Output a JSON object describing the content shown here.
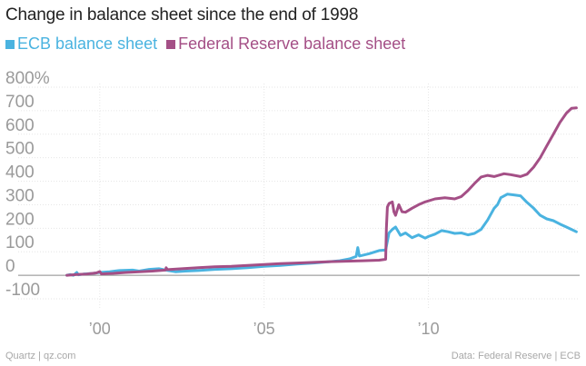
{
  "chart_data": {
    "type": "line",
    "title": "Change in balance sheet since the end of 1998",
    "xlabel": "",
    "ylabel": "",
    "ylim": [
      -100,
      800
    ],
    "xlim": [
      1998.9,
      2014.6
    ],
    "y_ticks": [
      {
        "value": 800,
        "label": "800%"
      },
      {
        "value": 700,
        "label": "700"
      },
      {
        "value": 600,
        "label": "600"
      },
      {
        "value": 500,
        "label": "500"
      },
      {
        "value": 400,
        "label": "400"
      },
      {
        "value": 300,
        "label": "300"
      },
      {
        "value": 200,
        "label": "200"
      },
      {
        "value": 100,
        "label": "100"
      },
      {
        "value": 0,
        "label": "0"
      },
      {
        "value": -100,
        "label": "-100"
      }
    ],
    "x_ticks": [
      {
        "value": 2000,
        "label": "’00"
      },
      {
        "value": 2005,
        "label": "’05"
      },
      {
        "value": 2010,
        "label": "’10"
      }
    ],
    "grid": true,
    "legend_position": "top-left",
    "series": [
      {
        "name": "ECB balance sheet",
        "color": "#4ab3e0",
        "points": [
          [
            1999.0,
            0
          ],
          [
            1999.1,
            3
          ],
          [
            1999.2,
            0
          ],
          [
            1999.3,
            12
          ],
          [
            1999.35,
            2
          ],
          [
            1999.5,
            5
          ],
          [
            1999.8,
            8
          ],
          [
            2000.0,
            12
          ],
          [
            2000.3,
            15
          ],
          [
            2000.6,
            20
          ],
          [
            2001.0,
            22
          ],
          [
            2001.2,
            18
          ],
          [
            2001.5,
            25
          ],
          [
            2001.8,
            28
          ],
          [
            2002.0,
            22
          ],
          [
            2002.3,
            15
          ],
          [
            2002.6,
            18
          ],
          [
            2003.0,
            20
          ],
          [
            2003.5,
            25
          ],
          [
            2004.0,
            28
          ],
          [
            2004.5,
            32
          ],
          [
            2005.0,
            38
          ],
          [
            2005.5,
            42
          ],
          [
            2006.0,
            48
          ],
          [
            2006.5,
            52
          ],
          [
            2007.0,
            58
          ],
          [
            2007.3,
            62
          ],
          [
            2007.6,
            70
          ],
          [
            2007.8,
            80
          ],
          [
            2007.85,
            118
          ],
          [
            2007.9,
            82
          ],
          [
            2008.2,
            92
          ],
          [
            2008.5,
            105
          ],
          [
            2008.7,
            108
          ],
          [
            2008.8,
            180
          ],
          [
            2008.9,
            195
          ],
          [
            2009.0,
            205
          ],
          [
            2009.15,
            170
          ],
          [
            2009.3,
            180
          ],
          [
            2009.5,
            160
          ],
          [
            2009.7,
            172
          ],
          [
            2009.9,
            158
          ],
          [
            2010.0,
            165
          ],
          [
            2010.2,
            175
          ],
          [
            2010.4,
            190
          ],
          [
            2010.6,
            185
          ],
          [
            2010.8,
            178
          ],
          [
            2011.0,
            180
          ],
          [
            2011.2,
            172
          ],
          [
            2011.4,
            178
          ],
          [
            2011.6,
            195
          ],
          [
            2011.8,
            235
          ],
          [
            2011.9,
            260
          ],
          [
            2012.0,
            285
          ],
          [
            2012.1,
            300
          ],
          [
            2012.2,
            330
          ],
          [
            2012.4,
            345
          ],
          [
            2012.6,
            342
          ],
          [
            2012.8,
            338
          ],
          [
            2013.0,
            310
          ],
          [
            2013.2,
            285
          ],
          [
            2013.4,
            255
          ],
          [
            2013.6,
            240
          ],
          [
            2013.8,
            232
          ],
          [
            2014.0,
            218
          ],
          [
            2014.2,
            205
          ],
          [
            2014.35,
            195
          ],
          [
            2014.5,
            185
          ]
        ]
      },
      {
        "name": "Federal Reserve balance sheet",
        "color": "#a44f86",
        "points": [
          [
            1999.0,
            0
          ],
          [
            1999.3,
            3
          ],
          [
            1999.6,
            5
          ],
          [
            1999.9,
            10
          ],
          [
            2000.0,
            16
          ],
          [
            2000.05,
            6
          ],
          [
            2000.4,
            8
          ],
          [
            2000.8,
            12
          ],
          [
            2001.2,
            15
          ],
          [
            2001.6,
            18
          ],
          [
            2002.0,
            22
          ],
          [
            2002.02,
            32
          ],
          [
            2002.06,
            24
          ],
          [
            2002.5,
            28
          ],
          [
            2003.0,
            32
          ],
          [
            2003.5,
            36
          ],
          [
            2004.0,
            38
          ],
          [
            2004.5,
            42
          ],
          [
            2005.0,
            46
          ],
          [
            2005.5,
            50
          ],
          [
            2006.0,
            52
          ],
          [
            2006.5,
            55
          ],
          [
            2007.0,
            58
          ],
          [
            2007.5,
            60
          ],
          [
            2008.0,
            62
          ],
          [
            2008.5,
            64
          ],
          [
            2008.7,
            68
          ],
          [
            2008.72,
            200
          ],
          [
            2008.75,
            290
          ],
          [
            2008.8,
            305
          ],
          [
            2008.9,
            312
          ],
          [
            2008.95,
            270
          ],
          [
            2009.0,
            255
          ],
          [
            2009.1,
            300
          ],
          [
            2009.2,
            270
          ],
          [
            2009.3,
            268
          ],
          [
            2009.5,
            285
          ],
          [
            2009.7,
            300
          ],
          [
            2009.9,
            312
          ],
          [
            2010.2,
            325
          ],
          [
            2010.5,
            330
          ],
          [
            2010.8,
            325
          ],
          [
            2011.0,
            335
          ],
          [
            2011.2,
            360
          ],
          [
            2011.4,
            390
          ],
          [
            2011.6,
            418
          ],
          [
            2011.8,
            425
          ],
          [
            2012.0,
            420
          ],
          [
            2012.3,
            432
          ],
          [
            2012.5,
            428
          ],
          [
            2012.8,
            420
          ],
          [
            2013.0,
            430
          ],
          [
            2013.2,
            460
          ],
          [
            2013.4,
            500
          ],
          [
            2013.6,
            550
          ],
          [
            2013.8,
            600
          ],
          [
            2014.0,
            650
          ],
          [
            2014.2,
            690
          ],
          [
            2014.35,
            710
          ],
          [
            2014.5,
            712
          ]
        ]
      }
    ]
  },
  "footer": {
    "source_left": "Quartz | qz.com",
    "source_right": "Data: Federal Reserve | ECB"
  }
}
